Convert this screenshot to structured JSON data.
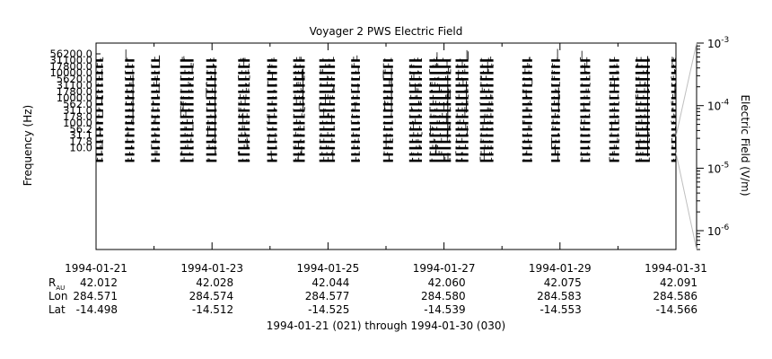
{
  "chart_data": {
    "type": "spectrogram",
    "title": "Voyager 2 PWS Electric Field",
    "ylabel": "Frequency (Hz)",
    "y_scale": "channel",
    "y_tick_labels": [
      "56200.0",
      "31100.0",
      "17800.0",
      "10000.0",
      "5620.0",
      "3110.0",
      "1780.0",
      "1000.0",
      "562.0",
      "311.0",
      "178.0",
      "100.0",
      "56.2",
      "31.1",
      "17.8",
      "10.0"
    ],
    "x_tick_labels": [
      "1994-01-21",
      "1994-01-23",
      "1994-01-25",
      "1994-01-27",
      "1994-01-29",
      "1994-01-31"
    ],
    "xlim_days": [
      0,
      10
    ],
    "right_axis": {
      "label": "Electric Field (V/m)",
      "scale": "log",
      "range": [
        5e-07,
        0.001
      ],
      "ticks": [
        {
          "base": "10",
          "exp": "-3"
        },
        {
          "base": "10",
          "exp": "-4"
        },
        {
          "base": "10",
          "exp": "-5"
        },
        {
          "base": "10",
          "exp": "-6"
        }
      ]
    },
    "ephemeris": {
      "row_labels": [
        {
          "main": "R",
          "sub": "AU"
        },
        {
          "main": "Lon",
          "sub": ""
        },
        {
          "main": "Lat",
          "sub": ""
        }
      ],
      "R": [
        "42.012",
        "42.028",
        "42.044",
        "42.060",
        "42.075",
        "42.091"
      ],
      "Lon": [
        "284.571",
        "284.574",
        "284.577",
        "284.580",
        "284.583",
        "284.586"
      ],
      "Lat": [
        "-14.498",
        "-14.512",
        "-14.525",
        "-14.539",
        "-14.553",
        "-14.566"
      ]
    },
    "footer": "1994-01-21 (021) through 1994-01-30 (030)",
    "data_segments_days": [
      [
        0.0,
        0.12
      ],
      [
        0.5,
        0.66
      ],
      [
        0.95,
        1.1
      ],
      [
        1.45,
        1.68
      ],
      [
        1.9,
        2.08
      ],
      [
        2.45,
        2.65
      ],
      [
        2.95,
        3.12
      ],
      [
        3.4,
        3.6
      ],
      [
        3.85,
        4.12
      ],
      [
        4.4,
        4.55
      ],
      [
        4.95,
        5.12
      ],
      [
        5.4,
        5.62
      ],
      [
        5.75,
        6.12
      ],
      [
        6.2,
        6.42
      ],
      [
        6.62,
        6.85
      ],
      [
        7.35,
        7.52
      ],
      [
        7.85,
        8.0
      ],
      [
        8.35,
        8.52
      ],
      [
        8.85,
        9.02
      ],
      [
        9.3,
        9.55
      ],
      [
        9.92,
        10.0
      ]
    ],
    "colors": {
      "line": "#000000",
      "axis_wedge": "#bfbfbf"
    }
  }
}
